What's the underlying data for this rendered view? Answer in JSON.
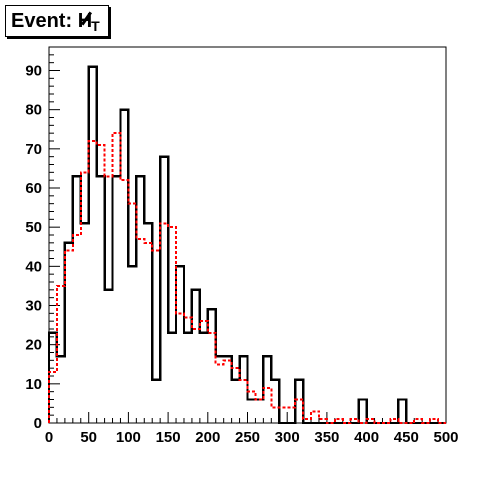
{
  "chart_data": {
    "type": "histogram",
    "title": {
      "prefix": "Event: ",
      "symbol": "H",
      "subscript": "T"
    },
    "x_axis": {
      "range": [
        0,
        500
      ],
      "ticks": [
        "0",
        "50",
        "100",
        "150",
        "200",
        "250",
        "300",
        "350",
        "400",
        "450",
        "500"
      ]
    },
    "y_axis": {
      "range": [
        0,
        96
      ],
      "ticks": [
        "0",
        "10",
        "20",
        "30",
        "40",
        "50",
        "60",
        "70",
        "80",
        "90"
      ]
    },
    "bin_width": 10,
    "series": [
      {
        "style": "solid",
        "color": "#000000",
        "values": [
          23,
          17,
          46,
          63,
          51,
          91,
          63,
          34,
          63,
          80,
          40,
          63,
          51,
          11,
          68,
          23,
          40,
          23,
          34,
          23,
          29,
          17,
          17,
          11,
          17,
          6,
          6,
          17,
          11,
          0,
          0,
          11,
          0,
          0,
          0,
          0,
          0,
          0,
          0,
          6,
          0,
          0,
          0,
          0,
          6,
          0,
          0,
          0,
          0,
          0
        ]
      },
      {
        "style": "dashed",
        "color": "#ff0000",
        "values": [
          13,
          35,
          44,
          48,
          64,
          72,
          71,
          63,
          74,
          62,
          56,
          47,
          46,
          44,
          51,
          50,
          28,
          27,
          24,
          26,
          23,
          15,
          16,
          14,
          11,
          8,
          6,
          9,
          4,
          4,
          4,
          6,
          1,
          3,
          1,
          0,
          1,
          0,
          1,
          0,
          1,
          0,
          0,
          1,
          0,
          0,
          1,
          0,
          1,
          0
        ]
      }
    ]
  }
}
